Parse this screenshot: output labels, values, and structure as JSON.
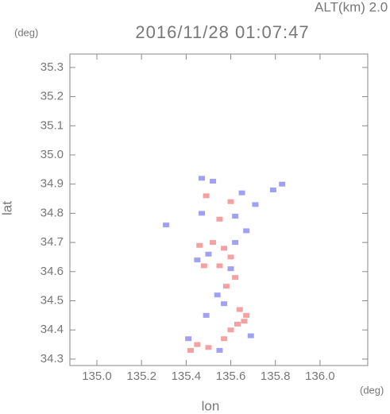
{
  "chart_data": {
    "type": "scatter",
    "title": "2016/11/28 01:07:47",
    "subtitle": "ALT(km) 2.0",
    "xlabel": "lon",
    "ylabel": "lat",
    "xunit": "(deg)",
    "yunit": "(deg)",
    "xlim": [
      134.879,
      136.214
    ],
    "ylim": [
      34.278,
      35.346
    ],
    "xticks": [
      {
        "value": 135,
        "label": "135.0"
      },
      135.2,
      135.4,
      135.6,
      135.8,
      {
        "value": 136,
        "label": "136.0"
      }
    ],
    "yticks": [
      34.3,
      34.4,
      34.5,
      34.6,
      34.7,
      34.8,
      34.9,
      {
        "value": 35,
        "label": "35.0"
      },
      35.1,
      35.2,
      35.3
    ],
    "series": [
      {
        "color": "#f08a8a",
        "x": [
          135.49,
          135.6,
          135.55,
          135.46,
          135.6,
          135.55,
          135.62,
          135.58,
          135.64,
          135.67,
          135.63,
          135.6,
          135.66,
          135.45,
          135.5,
          135.57,
          135.42,
          135.52,
          135.57,
          135.48
        ],
        "y": [
          34.86,
          34.84,
          34.78,
          34.69,
          34.65,
          34.62,
          34.58,
          34.55,
          34.47,
          34.45,
          34.42,
          34.4,
          34.43,
          34.35,
          34.34,
          34.37,
          34.33,
          34.7,
          34.68,
          34.62
        ]
      },
      {
        "color": "#8a8af0",
        "x": [
          135.47,
          135.52,
          135.83,
          135.79,
          135.65,
          135.47,
          135.62,
          135.71,
          135.67,
          135.5,
          135.45,
          135.6,
          135.54,
          135.57,
          135.49,
          135.41,
          135.55,
          135.69,
          135.31,
          135.62
        ],
        "y": [
          34.92,
          34.91,
          34.9,
          34.88,
          34.87,
          34.8,
          34.79,
          34.83,
          34.74,
          34.66,
          34.64,
          34.61,
          34.52,
          34.49,
          34.45,
          34.37,
          34.33,
          34.38,
          34.76,
          34.7
        ]
      }
    ]
  }
}
